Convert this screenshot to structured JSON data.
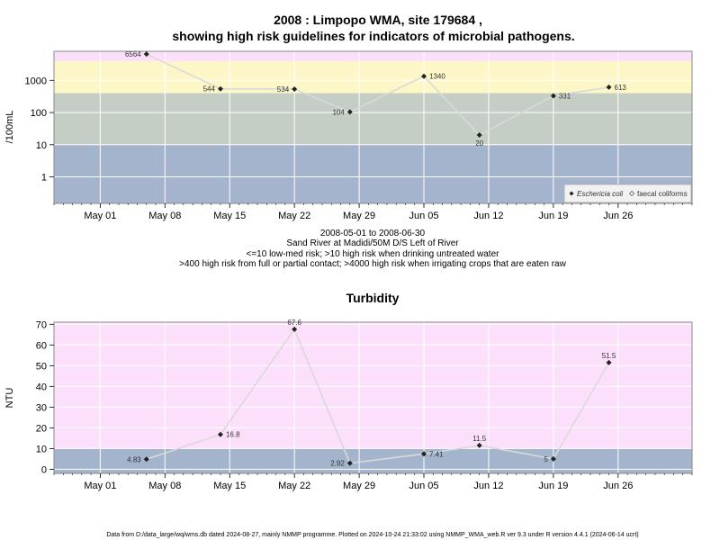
{
  "title_line1": "2008 : Limpopo WMA, site 179684 ,",
  "title_line2": "showing high risk guidelines for indicators of microbial pathogens.",
  "info_lines": [
    "2008-05-01 to 2008-06-30",
    "Sand River at Madidi/50M D/S Left of River",
    "<=10 low-med risk; >10 high risk when drinking untreated water",
    ">400 high risk from full or partial contact; >4000 high risk when irrigating crops that are eaten raw"
  ],
  "footer": "Data from D:/data_large/wq/wms.db dated 2024-08-27, mainly NMMP programme. Plotted on 2024-10-24 21:33:02 using NMMP_WMA_web.R ver 9.3 under R version 4.4.1 (2024-06-14 ucrt)",
  "colors": {
    "band_low": "#a3b4cc",
    "band_mid": "#c4cec4",
    "band_high": "#fdf7c8",
    "band_top": "#fce0fb",
    "line": "#d9d9d9",
    "point": "#222222"
  },
  "chart_data": [
    {
      "type": "line",
      "title": "",
      "ylabel": "/100mL",
      "yscale": "log",
      "ylim": [
        0.15,
        8000
      ],
      "xlim": [
        "2008-04-26",
        "2008-07-04"
      ],
      "yticks": [
        1,
        10,
        100,
        1000
      ],
      "ytick_labels": [
        "1",
        "10",
        "100",
        "1000"
      ],
      "xticks": [
        "2008-05-01",
        "2008-05-08",
        "2008-05-15",
        "2008-05-22",
        "2008-05-29",
        "2008-06-05",
        "2008-06-12",
        "2008-06-19",
        "2008-06-26"
      ],
      "xtick_labels": [
        "May 01",
        "May 08",
        "May 15",
        "May 22",
        "May 29",
        "Jun 05",
        "Jun 12",
        "Jun 19",
        "Jun 26"
      ],
      "bands": [
        {
          "from": 0.15,
          "to": 10,
          "color": "#a3b4cc"
        },
        {
          "from": 10,
          "to": 400,
          "color": "#c4cec4"
        },
        {
          "from": 400,
          "to": 4000,
          "color": "#fdf7c8"
        },
        {
          "from": 4000,
          "to": 8000,
          "color": "#fce0fb"
        }
      ],
      "legend": {
        "position": "bottom-right",
        "entries": [
          "Eschericia coli",
          "faecal coliforms"
        ]
      },
      "series": [
        {
          "name": "Eschericia coli",
          "x": [
            "2008-05-06",
            "2008-05-14",
            "2008-05-22",
            "2008-05-28",
            "2008-06-05",
            "2008-06-11",
            "2008-06-19",
            "2008-06-25"
          ],
          "y": [
            6564,
            544,
            534,
            104,
            1340,
            20,
            331,
            613
          ],
          "labels": [
            "6564",
            "544",
            "534",
            "104",
            "1340",
            "20",
            "331",
            "613"
          ]
        }
      ]
    },
    {
      "type": "line",
      "title": "Turbidity",
      "ylabel": "NTU",
      "ylim": [
        -2,
        71
      ],
      "xlim": [
        "2008-04-26",
        "2008-07-04"
      ],
      "yticks": [
        0,
        10,
        20,
        30,
        40,
        50,
        60,
        70
      ],
      "ytick_labels": [
        "0",
        "10",
        "20",
        "30",
        "40",
        "50",
        "60",
        "70"
      ],
      "xticks": [
        "2008-05-01",
        "2008-05-08",
        "2008-05-15",
        "2008-05-22",
        "2008-05-29",
        "2008-06-05",
        "2008-06-12",
        "2008-06-19",
        "2008-06-26"
      ],
      "xtick_labels": [
        "May 01",
        "May 08",
        "May 15",
        "May 22",
        "May 29",
        "Jun 05",
        "Jun 12",
        "Jun 19",
        "Jun 26"
      ],
      "bands": [
        {
          "from": -2,
          "to": 10,
          "color": "#a3b4cc"
        },
        {
          "from": 10,
          "to": 71,
          "color": "#fce0fb"
        }
      ],
      "series": [
        {
          "x": [
            "2008-05-06",
            "2008-05-14",
            "2008-05-22",
            "2008-05-28",
            "2008-06-05",
            "2008-06-11",
            "2008-06-19",
            "2008-06-25"
          ],
          "y": [
            4.83,
            16.8,
            67.6,
            2.92,
            7.41,
            11.5,
            5,
            51.5
          ],
          "labels": [
            "4.83",
            "16.8",
            "67.6",
            "2.92",
            "7.41",
            "11.5",
            "5",
            "51.5"
          ]
        }
      ]
    }
  ]
}
